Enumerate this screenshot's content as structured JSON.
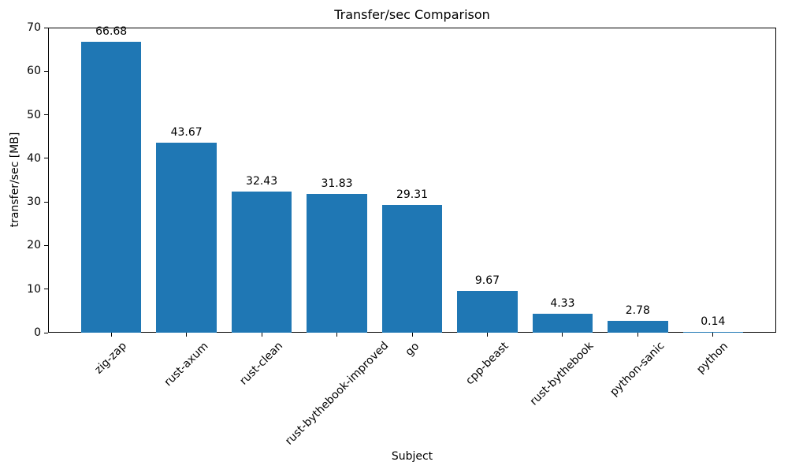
{
  "chart_data": {
    "type": "bar",
    "title": "Transfer/sec Comparison",
    "xlabel": "Subject",
    "ylabel": "transfer/sec [MB]",
    "categories": [
      "zig-zap",
      "rust-axum",
      "rust-clean",
      "rust-bythebook-improved",
      "go",
      "cpp-beast",
      "rust-bythebook",
      "python-sanic",
      "python"
    ],
    "values": [
      66.68,
      43.67,
      32.43,
      31.83,
      29.31,
      9.67,
      4.33,
      2.78,
      0.14
    ],
    "value_labels": [
      "66.68",
      "43.67",
      "32.43",
      "31.83",
      "29.31",
      "9.67",
      "4.33",
      "2.78",
      "0.14"
    ],
    "ylim": [
      0,
      70
    ],
    "yticks": [
      0,
      10,
      20,
      30,
      40,
      50,
      60,
      70
    ],
    "bar_color": "#1f77b4",
    "axis_color": "#000000",
    "text_color": "#000000",
    "grid": "off",
    "legend": "none",
    "x_tick_rotation_deg": 45
  }
}
